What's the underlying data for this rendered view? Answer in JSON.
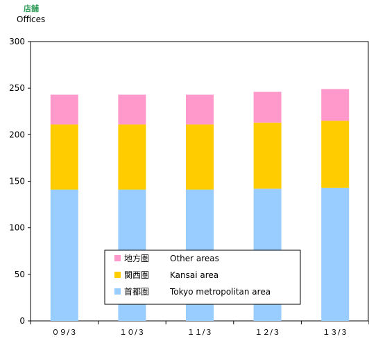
{
  "header": {
    "unit_jp": "店舗",
    "unit_en": "Offices"
  },
  "colors": {
    "other": "#ff99cc",
    "kansai": "#ffcc00",
    "tokyo": "#99ccff",
    "unit_label": "#2e9a57"
  },
  "chart_data": {
    "type": "bar",
    "stacked": true,
    "categories": [
      "０９/３",
      "１０/３",
      "１１/３",
      "１２/３",
      "１３/３"
    ],
    "series": [
      {
        "key": "tokyo",
        "name_jp": "首都圏",
        "name_en": "Tokyo metropolitan area",
        "values": [
          141,
          141,
          141,
          142,
          143
        ]
      },
      {
        "key": "kansai",
        "name_jp": "関西圏",
        "name_en": "Kansai area",
        "values": [
          70,
          70,
          70,
          71,
          72
        ]
      },
      {
        "key": "other",
        "name_jp": "地方圏",
        "name_en": "Other areas",
        "values": [
          32,
          32,
          32,
          33,
          34
        ]
      }
    ],
    "ylim": [
      0,
      300
    ],
    "yticks": [
      0,
      50,
      100,
      150,
      200,
      250,
      300
    ],
    "grid": false,
    "legend": {
      "placement": "bottom-center",
      "order": [
        "other",
        "kansai",
        "tokyo"
      ]
    }
  }
}
